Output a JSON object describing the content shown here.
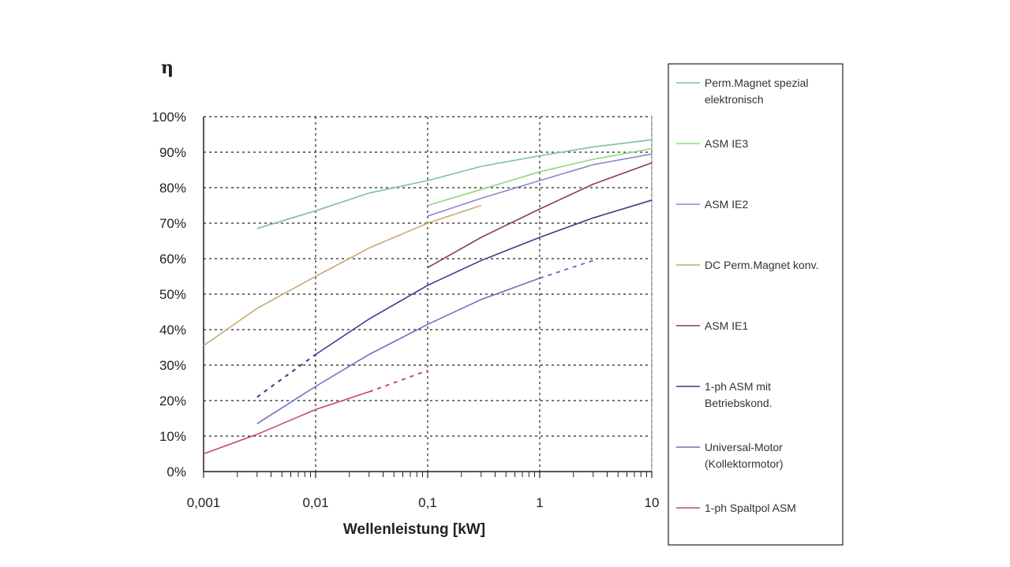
{
  "chart_data": {
    "type": "line",
    "ylabel": "η",
    "xlabel": "Wellenleistung [kW]",
    "xscale": "log",
    "xlim": [
      0.001,
      10
    ],
    "ylim": [
      0,
      100
    ],
    "x_ticks": [
      "0,001",
      "0,01",
      "0,1",
      "1",
      "10"
    ],
    "y_ticks": [
      "0%",
      "10%",
      "20%",
      "30%",
      "40%",
      "50%",
      "60%",
      "70%",
      "80%",
      "90%",
      "100%"
    ],
    "grid": "dotted",
    "legend_position": "right",
    "series": [
      {
        "name": "Perm.Magnet spezial elektronisch",
        "color": "#7fbfa5",
        "solid": [
          [
            0.003,
            68.5
          ],
          [
            0.01,
            73.5
          ],
          [
            0.03,
            78.5
          ],
          [
            0.1,
            82
          ],
          [
            0.3,
            86
          ],
          [
            1,
            89
          ],
          [
            3,
            91.5
          ],
          [
            10,
            93.5
          ]
        ]
      },
      {
        "name": "ASM IE3",
        "color": "#8ed87f",
        "solid": [
          [
            0.1,
            75
          ],
          [
            0.3,
            79.5
          ],
          [
            1,
            84.5
          ],
          [
            3,
            88
          ],
          [
            10,
            91
          ]
        ]
      },
      {
        "name": "ASM IE2",
        "color": "#8a8ac8",
        "solid": [
          [
            0.1,
            72
          ],
          [
            0.3,
            77
          ],
          [
            1,
            82
          ],
          [
            3,
            86.5
          ],
          [
            10,
            89.5
          ]
        ]
      },
      {
        "name": "DC Perm.Magnet konv.",
        "color": "#c9a978",
        "solid": [
          [
            0.001,
            35.5
          ],
          [
            0.003,
            46
          ],
          [
            0.01,
            55
          ],
          [
            0.03,
            63
          ],
          [
            0.1,
            70
          ],
          [
            0.3,
            75
          ]
        ]
      },
      {
        "name": "ASM IE1",
        "color": "#8e3a5e",
        "solid": [
          [
            0.1,
            57.5
          ],
          [
            0.3,
            66
          ],
          [
            1,
            74
          ],
          [
            3,
            81
          ],
          [
            10,
            87
          ]
        ]
      },
      {
        "name": "1-ph ASM mit Betriebskond.",
        "color": "#3a3a8c",
        "dashed": [
          [
            0.003,
            21
          ],
          [
            0.01,
            33
          ]
        ],
        "solid": [
          [
            0.01,
            33
          ],
          [
            0.03,
            43
          ],
          [
            0.1,
            52.5
          ],
          [
            0.3,
            59.5
          ],
          [
            1,
            66
          ],
          [
            3,
            71.5
          ],
          [
            10,
            76.5
          ]
        ]
      },
      {
        "name": "Universal-Motor (Kollektormotor)",
        "color": "#7a6cc0",
        "solid": [
          [
            0.003,
            13.5
          ],
          [
            0.01,
            24
          ],
          [
            0.03,
            33
          ],
          [
            0.1,
            41.5
          ],
          [
            0.3,
            48.5
          ],
          [
            1,
            54.5
          ]
        ],
        "dashed": [
          [
            1,
            54.5
          ],
          [
            3,
            59.5
          ]
        ]
      },
      {
        "name": "1-ph Spaltpol ASM",
        "color": "#c24a6a",
        "solid": [
          [
            0.001,
            5
          ],
          [
            0.003,
            10.5
          ],
          [
            0.01,
            17.5
          ],
          [
            0.03,
            22.5
          ]
        ],
        "dashed": [
          [
            0.03,
            22.5
          ],
          [
            0.1,
            28.5
          ]
        ]
      }
    ]
  }
}
